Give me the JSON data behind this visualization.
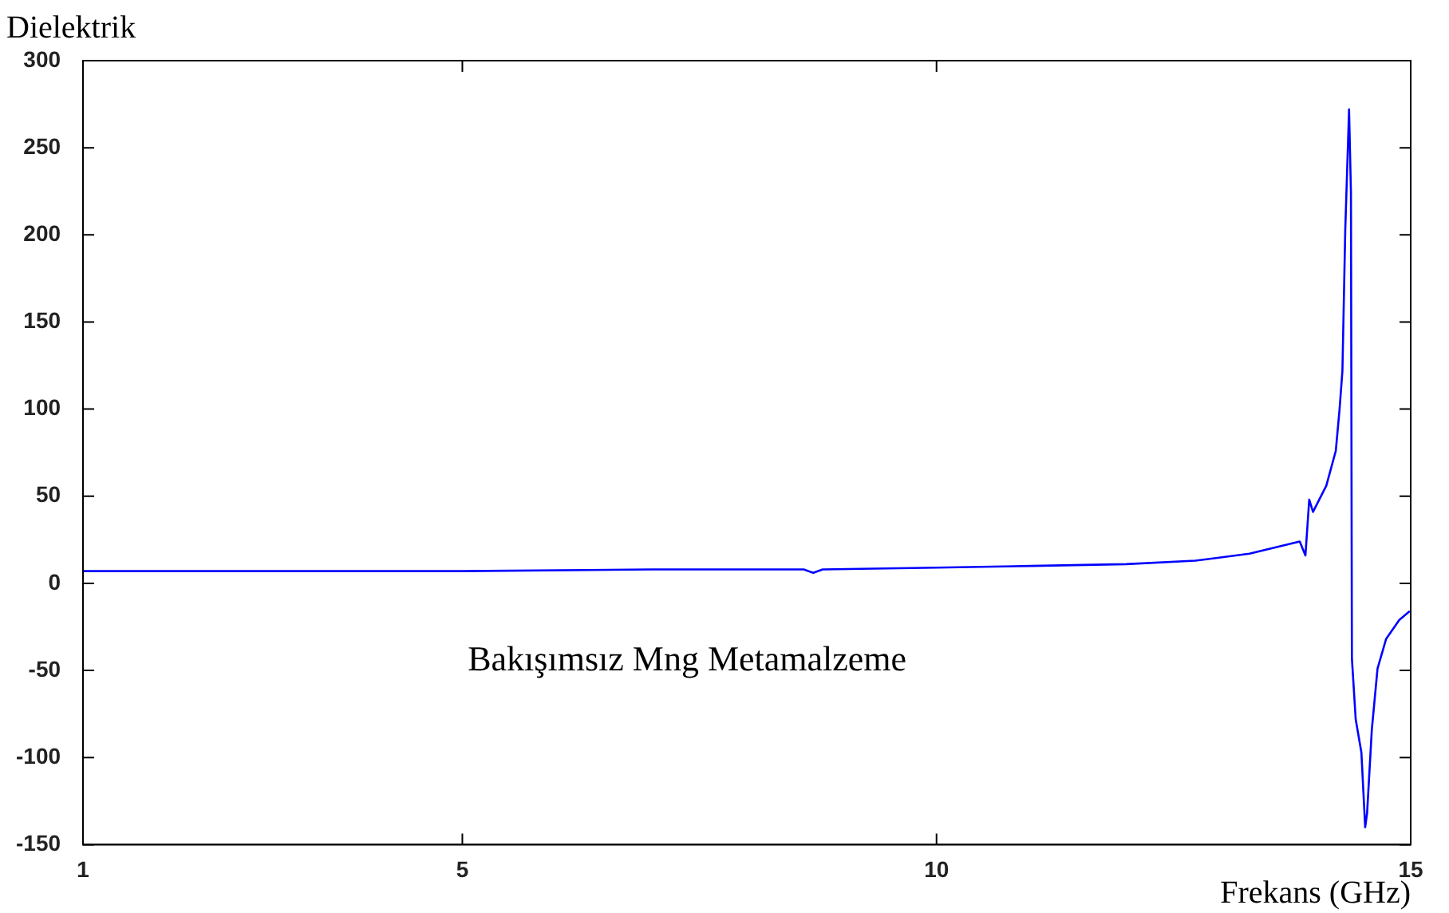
{
  "chart_data": {
    "type": "line",
    "title": "Dielektrik",
    "xlabel": "Frekans (GHz)",
    "annotations": [
      "Bakışımsız Mng Metamalzeme"
    ],
    "x": [
      1,
      3,
      5,
      7,
      8.6,
      8.7,
      8.8,
      10,
      11,
      12,
      12.73,
      13.3,
      13.83,
      13.89,
      13.93,
      13.97,
      14.11,
      14.21,
      14.25,
      14.28,
      14.31,
      14.35,
      14.37,
      14.38,
      14.42,
      14.48,
      14.52,
      14.54,
      14.59,
      14.65,
      14.74,
      14.88,
      14.99
    ],
    "series": [
      {
        "color": "#0000ff",
        "values": [
          7,
          7,
          7,
          8,
          8,
          6,
          8,
          9,
          10,
          11,
          13,
          17,
          24,
          16,
          48,
          41,
          56,
          76,
          100,
          122,
          203,
          272,
          224,
          -43,
          -78,
          -97,
          -140,
          -132,
          -84,
          -49,
          -32,
          -21,
          -16
        ]
      }
    ],
    "xlim": [
      1,
      15
    ],
    "xticks": [
      1,
      5,
      10,
      15
    ],
    "ylim": [
      -150,
      300
    ],
    "yticks": [
      -150,
      -100,
      -50,
      0,
      50,
      100,
      150,
      200,
      250,
      300
    ],
    "grid": false,
    "legend": false,
    "marker": "none",
    "line_style": "solid"
  }
}
